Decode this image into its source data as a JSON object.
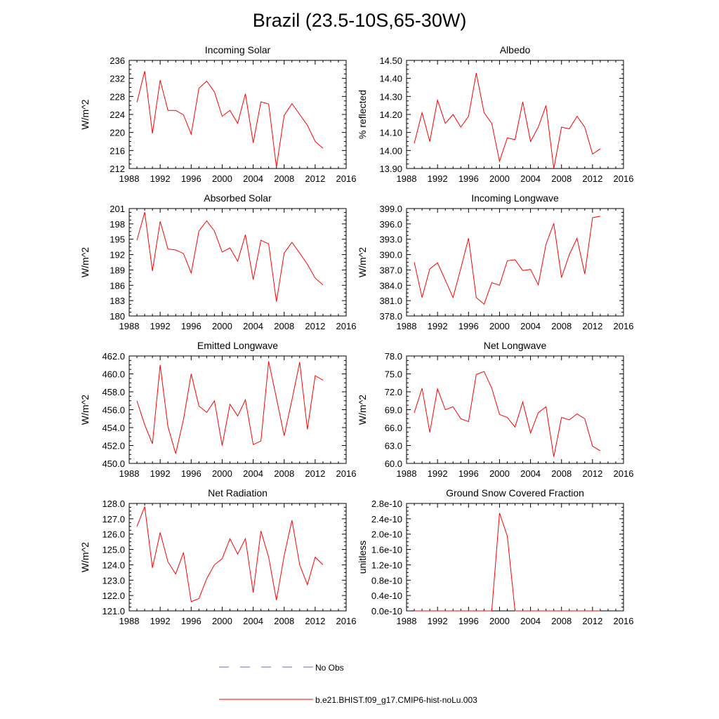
{
  "title": "Brazil (23.5-10S,65-30W)",
  "colors": {
    "model": "#ff0000",
    "obs": "#6b6bd6",
    "axis": "#000000"
  },
  "legend": {
    "obs_label": "No Obs",
    "model_label": "b.e21.BHIST.f09_g17.CMIP6-hist-noLu.003"
  },
  "chart_data": [
    {
      "type": "line",
      "title": "Incoming Solar",
      "ylabel": "W/m^2",
      "xlim": [
        1988,
        2016
      ],
      "xticks": [
        "1988",
        "1992",
        "1996",
        "2000",
        "2004",
        "2008",
        "2012",
        "2016"
      ],
      "ylim": [
        212,
        236
      ],
      "yticks": [
        "212",
        "216",
        "220",
        "224",
        "228",
        "232",
        "236"
      ],
      "x": [
        1989,
        1990,
        1991,
        1992,
        1993,
        1994,
        1995,
        1996,
        1997,
        1998,
        1999,
        2000,
        2001,
        2002,
        2003,
        2004,
        2005,
        2006,
        2007,
        2008,
        2009,
        2010,
        2011,
        2012,
        2013
      ],
      "series": [
        {
          "name": "b.e21.BHIST.f09_g17.CMIP6-hist-noLu.003",
          "values": [
            226.7,
            233.6,
            219.8,
            231.6,
            224.9,
            224.9,
            223.9,
            219.6,
            229.8,
            231.4,
            229.0,
            223.6,
            224.9,
            222.0,
            228.6,
            217.7,
            226.8,
            226.3,
            212.3,
            223.8,
            226.4,
            224.0,
            221.6,
            218.0,
            216.5
          ]
        }
      ]
    },
    {
      "type": "line",
      "title": "Albedo",
      "ylabel": "% reflected",
      "xlim": [
        1988,
        2016
      ],
      "xticks": [
        "1988",
        "1992",
        "1996",
        "2000",
        "2004",
        "2008",
        "2012",
        "2016"
      ],
      "ylim": [
        13.9,
        14.5
      ],
      "yticks": [
        "13.90",
        "14.00",
        "14.10",
        "14.20",
        "14.30",
        "14.40",
        "14.50"
      ],
      "x": [
        1989,
        1990,
        1991,
        1992,
        1993,
        1994,
        1995,
        1996,
        1997,
        1998,
        1999,
        2000,
        2001,
        2002,
        2003,
        2004,
        2005,
        2006,
        2007,
        2008,
        2009,
        2010,
        2011,
        2012,
        2013
      ],
      "series": [
        {
          "name": "b.e21.BHIST.f09_g17.CMIP6-hist-noLu.003",
          "values": [
            14.04,
            14.21,
            14.05,
            14.28,
            14.15,
            14.2,
            14.13,
            14.19,
            14.43,
            14.21,
            14.15,
            13.94,
            14.07,
            14.06,
            14.27,
            14.05,
            14.13,
            14.25,
            13.9,
            14.13,
            14.12,
            14.19,
            14.13,
            13.98,
            14.01
          ]
        }
      ]
    },
    {
      "type": "line",
      "title": "Absorbed Solar",
      "ylabel": "W/m^2",
      "xlim": [
        1988,
        2016
      ],
      "xticks": [
        "1988",
        "1992",
        "1996",
        "2000",
        "2004",
        "2008",
        "2012",
        "2016"
      ],
      "ylim": [
        180,
        201
      ],
      "yticks": [
        "180",
        "183",
        "186",
        "189",
        "192",
        "195",
        "198",
        "201"
      ],
      "x": [
        1989,
        1990,
        1991,
        1992,
        1993,
        1994,
        1995,
        1996,
        1997,
        1998,
        1999,
        2000,
        2001,
        2002,
        2003,
        2004,
        2005,
        2006,
        2007,
        2008,
        2009,
        2010,
        2011,
        2012,
        2013
      ],
      "series": [
        {
          "name": "b.e21.BHIST.f09_g17.CMIP6-hist-noLu.003",
          "values": [
            194.8,
            200.3,
            188.8,
            198.5,
            193.1,
            192.9,
            192.2,
            188.4,
            196.6,
            198.6,
            196.6,
            192.5,
            193.3,
            190.7,
            195.9,
            187.1,
            194.8,
            194.1,
            182.8,
            192.3,
            194.4,
            192.3,
            190.1,
            187.4,
            186.1
          ]
        }
      ]
    },
    {
      "type": "line",
      "title": "Incoming Longwave",
      "ylabel": "W/m^2",
      "xlim": [
        1988,
        2016
      ],
      "xticks": [
        "1988",
        "1992",
        "1996",
        "2000",
        "2004",
        "2008",
        "2012",
        "2016"
      ],
      "ylim": [
        378,
        399
      ],
      "yticks": [
        "378.0",
        "381.0",
        "384.0",
        "387.0",
        "390.0",
        "393.0",
        "396.0",
        "399.0"
      ],
      "x": [
        1989,
        1990,
        1991,
        1992,
        1993,
        1994,
        1995,
        1996,
        1997,
        1998,
        1999,
        2000,
        2001,
        2002,
        2003,
        2004,
        2005,
        2006,
        2007,
        2008,
        2009,
        2010,
        2011,
        2012,
        2013
      ],
      "series": [
        {
          "name": "b.e21.BHIST.f09_g17.CMIP6-hist-noLu.003",
          "values": [
            388.5,
            381.6,
            387.2,
            388.4,
            385.0,
            381.6,
            387.3,
            393.2,
            381.6,
            380.3,
            384.5,
            384.0,
            388.8,
            389.0,
            386.9,
            387.1,
            384.1,
            392.0,
            396.1,
            385.5,
            390.0,
            393.2,
            386.2,
            397.2,
            397.5
          ]
        }
      ]
    },
    {
      "type": "line",
      "title": "Emitted Longwave",
      "ylabel": "W/m^2",
      "xlim": [
        1988,
        2016
      ],
      "xticks": [
        "1988",
        "1992",
        "1996",
        "2000",
        "2004",
        "2008",
        "2012",
        "2016"
      ],
      "ylim": [
        450,
        462
      ],
      "yticks": [
        "450.0",
        "452.0",
        "454.0",
        "456.0",
        "458.0",
        "460.0",
        "462.0"
      ],
      "x": [
        1989,
        1990,
        1991,
        1992,
        1993,
        1994,
        1995,
        1996,
        1997,
        1998,
        1999,
        2000,
        2001,
        2002,
        2003,
        2004,
        2005,
        2006,
        2007,
        2008,
        2009,
        2010,
        2011,
        2012,
        2013
      ],
      "series": [
        {
          "name": "b.e21.BHIST.f09_g17.CMIP6-hist-noLu.003",
          "values": [
            457.0,
            454.3,
            452.2,
            461.0,
            454.1,
            451.1,
            454.9,
            460.0,
            456.4,
            455.7,
            457.0,
            452.0,
            456.6,
            455.3,
            457.1,
            452.1,
            452.5,
            461.4,
            457.3,
            453.1,
            457.1,
            461.3,
            453.8,
            459.8,
            459.3
          ]
        }
      ]
    },
    {
      "type": "line",
      "title": "Net Longwave",
      "ylabel": "W/m^2",
      "xlim": [
        1988,
        2016
      ],
      "xticks": [
        "1988",
        "1992",
        "1996",
        "2000",
        "2004",
        "2008",
        "2012",
        "2016"
      ],
      "ylim": [
        60,
        78
      ],
      "yticks": [
        "60.0",
        "63.0",
        "66.0",
        "69.0",
        "72.0",
        "75.0",
        "78.0"
      ],
      "x": [
        1989,
        1990,
        1991,
        1992,
        1993,
        1994,
        1995,
        1996,
        1997,
        1998,
        1999,
        2000,
        2001,
        2002,
        2003,
        2004,
        2005,
        2006,
        2007,
        2008,
        2009,
        2010,
        2011,
        2012,
        2013
      ],
      "series": [
        {
          "name": "b.e21.BHIST.f09_g17.CMIP6-hist-noLu.003",
          "values": [
            68.5,
            72.6,
            65.2,
            72.5,
            69.0,
            69.5,
            67.5,
            67.0,
            74.9,
            75.4,
            72.6,
            68.2,
            67.7,
            66.1,
            70.3,
            65.1,
            68.5,
            69.5,
            61.1,
            67.7,
            67.3,
            68.3,
            67.5,
            62.9,
            62.1
          ]
        }
      ]
    },
    {
      "type": "line",
      "title": "Net Radiation",
      "ylabel": "W/m^2",
      "xlim": [
        1988,
        2016
      ],
      "xticks": [
        "1988",
        "1992",
        "1996",
        "2000",
        "2004",
        "2008",
        "2012",
        "2016"
      ],
      "ylim": [
        121,
        128
      ],
      "yticks": [
        "121.0",
        "122.0",
        "123.0",
        "124.0",
        "125.0",
        "126.0",
        "127.0",
        "128.0"
      ],
      "x": [
        1989,
        1990,
        1991,
        1992,
        1993,
        1994,
        1995,
        1996,
        1997,
        1998,
        1999,
        2000,
        2001,
        2002,
        2003,
        2004,
        2005,
        2006,
        2007,
        2008,
        2009,
        2010,
        2011,
        2012,
        2013
      ],
      "series": [
        {
          "name": "b.e21.BHIST.f09_g17.CMIP6-hist-noLu.003",
          "values": [
            126.5,
            127.8,
            123.8,
            126.1,
            124.2,
            123.4,
            124.8,
            121.6,
            121.8,
            123.1,
            124.0,
            124.4,
            125.7,
            124.7,
            125.7,
            122.2,
            126.2,
            124.5,
            121.7,
            124.6,
            126.9,
            124.0,
            122.7,
            124.5,
            124.0
          ]
        }
      ]
    },
    {
      "type": "line",
      "title": "Ground Snow Covered Fraction",
      "ylabel": "unitless",
      "xlim": [
        1988,
        2016
      ],
      "xticks": [
        "1988",
        "1992",
        "1996",
        "2000",
        "2004",
        "2008",
        "2012",
        "2016"
      ],
      "ylim": [
        0,
        2.8e-10
      ],
      "yticks": [
        "0.0e-10",
        "0.4e-10",
        "0.8e-10",
        "1.2e-10",
        "1.6e-10",
        "2.0e-10",
        "2.4e-10",
        "2.8e-10"
      ],
      "x": [
        1989,
        1990,
        1991,
        1992,
        1993,
        1994,
        1995,
        1996,
        1997,
        1998,
        1999,
        2000,
        2001,
        2002,
        2003,
        2004,
        2005,
        2006,
        2007,
        2008,
        2009,
        2010,
        2011,
        2012,
        2013
      ],
      "series": [
        {
          "name": "b.e21.BHIST.f09_g17.CMIP6-hist-noLu.003",
          "values": [
            0,
            0,
            0,
            0,
            0,
            0,
            0,
            0,
            0,
            0,
            0,
            2.55e-10,
            1.95e-10,
            0,
            0,
            0,
            0,
            0,
            0,
            0,
            0,
            0,
            0,
            0,
            0
          ]
        }
      ]
    }
  ]
}
